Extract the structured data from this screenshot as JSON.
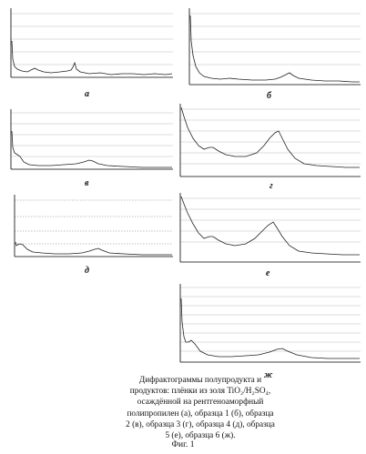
{
  "figure": {
    "panels": [
      {
        "id": "a",
        "label": "а"
      },
      {
        "id": "b",
        "label": "б"
      },
      {
        "id": "v",
        "label": "в"
      },
      {
        "id": "g",
        "label": "г"
      },
      {
        "id": "d",
        "label": "д"
      },
      {
        "id": "e",
        "label": "е"
      },
      {
        "id": "zh",
        "label": "ж"
      }
    ],
    "caption_lines": [
      "Дифрактограммы полупродукта и",
      "продуктов: плёнки из золя TiO₂/H₂SO₄,",
      "осаждённой на рентгеноаморфный",
      "полипропилен (а), образца 1 (б), образца",
      "2 (в), образца 3 (г), образца 4 (д), образца",
      "5 (е), образца 6 (ж)."
    ],
    "figure_label": "Фиг. 1"
  }
}
